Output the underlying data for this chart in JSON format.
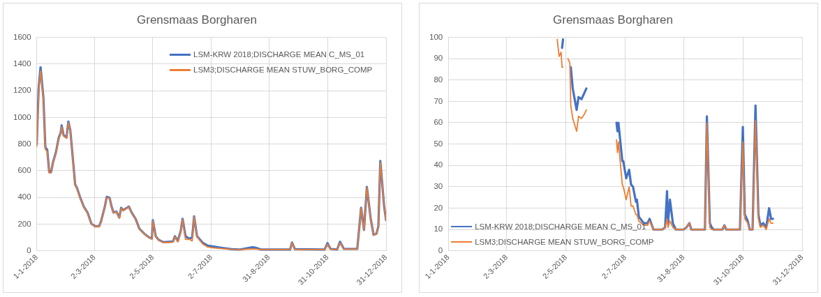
{
  "chart_data": [
    {
      "type": "line",
      "title": "Grensmaas Borgharen",
      "x": [
        "2018-01-01",
        "2018-01-03",
        "2018-01-05",
        "2018-01-08",
        "2018-01-10",
        "2018-01-12",
        "2018-01-14",
        "2018-01-16",
        "2018-01-18",
        "2018-01-21",
        "2018-01-24",
        "2018-01-26",
        "2018-01-27",
        "2018-01-29",
        "2018-02-01",
        "2018-02-03",
        "2018-02-05",
        "2018-02-08",
        "2018-02-10",
        "2018-02-12",
        "2018-02-15",
        "2018-02-19",
        "2018-02-23",
        "2018-02-27",
        "2018-03-03",
        "2018-03-07",
        "2018-03-09",
        "2018-03-13",
        "2018-03-15",
        "2018-03-18",
        "2018-03-20",
        "2018-03-22",
        "2018-03-25",
        "2018-03-28",
        "2018-03-30",
        "2018-04-01",
        "2018-04-07",
        "2018-04-10",
        "2018-04-14",
        "2018-04-18",
        "2018-04-23",
        "2018-04-28",
        "2018-05-01",
        "2018-05-02",
        "2018-05-05",
        "2018-05-08",
        "2018-05-13",
        "2018-05-23",
        "2018-05-25",
        "2018-05-28",
        "2018-05-31",
        "2018-06-02",
        "2018-06-05",
        "2018-06-09",
        "2018-06-12",
        "2018-06-14",
        "2018-06-17",
        "2018-06-23",
        "2018-06-28",
        "2018-07-03",
        "2018-07-13",
        "2018-07-23",
        "2018-07-31",
        "2018-08-14",
        "2018-08-17",
        "2018-08-23",
        "2018-09-22",
        "2018-09-24",
        "2018-09-27",
        "2018-10-28",
        "2018-10-31",
        "2018-11-03",
        "2018-11-10",
        "2018-11-13",
        "2018-11-17",
        "2018-12-01",
        "2018-12-05",
        "2018-12-08",
        "2018-12-11",
        "2018-12-15",
        "2018-12-18",
        "2018-12-21",
        "2018-12-23",
        "2018-12-25",
        "2018-12-29",
        "2018-12-31"
      ],
      "series": [
        {
          "name": "LSM-KRW 2018;DISCHARGE MEAN C_MS_01",
          "color": "#4472c4",
          "values": [
            800,
            1215,
            1375,
            1143,
            774,
            756,
            590,
            590,
            664,
            737,
            848,
            885,
            940,
            866,
            848,
            968,
            903,
            664,
            498,
            470,
            405,
            332,
            286,
            203,
            184,
            184,
            221,
            332,
            405,
            396,
            332,
            286,
            295,
            249,
            323,
            304,
            332,
            286,
            240,
            166,
            129,
            101,
            92,
            230,
            110,
            83,
            65,
            70,
            110,
            74,
            147,
            240,
            110,
            92,
            100,
            258,
            110,
            60,
            40,
            34,
            23,
            13,
            10,
            28,
            24,
            10,
            10,
            63,
            13,
            10,
            58,
            15,
            10,
            68,
            15,
            15,
            323,
            157,
            479,
            240,
            120,
            129,
            184,
            673,
            332,
            230
          ]
        },
        {
          "name": "LSM3;DISCHARGE MEAN STUW_BORG_COMP",
          "color": "#ed7d31",
          "values": [
            780,
            1190,
            1350,
            1130,
            760,
            745,
            585,
            585,
            660,
            730,
            840,
            880,
            930,
            860,
            845,
            960,
            900,
            660,
            495,
            468,
            400,
            330,
            284,
            200,
            182,
            182,
            218,
            330,
            400,
            392,
            330,
            284,
            292,
            246,
            320,
            302,
            330,
            284,
            238,
            164,
            127,
            99,
            90,
            225,
            108,
            82,
            62,
            66,
            108,
            68,
            140,
            235,
            86,
            88,
            74,
            255,
            105,
            52,
            30,
            24,
            17,
            12,
            10,
            15,
            14,
            10,
            10,
            60,
            11,
            10,
            51,
            13,
            10,
            61,
            13,
            13,
            320,
            155,
            475,
            238,
            118,
            127,
            182,
            665,
            330,
            228
          ]
        }
      ],
      "xlim": [
        "2018-01-01",
        "2018-12-31"
      ],
      "xticks": [
        {
          "value": "2018-01-01",
          "label": "1-1-2018"
        },
        {
          "value": "2018-03-02",
          "label": "2-3-2018"
        },
        {
          "value": "2018-05-02",
          "label": "2-5-2018"
        },
        {
          "value": "2018-07-02",
          "label": "2-7-2018"
        },
        {
          "value": "2018-08-31",
          "label": "31-8-2018"
        },
        {
          "value": "2018-10-31",
          "label": "31-10-2018"
        },
        {
          "value": "2018-12-31",
          "label": "31-12-2018"
        }
      ],
      "ylim": [
        0,
        1600
      ],
      "yticks": [
        0,
        200,
        400,
        600,
        800,
        1000,
        1200,
        1400,
        1600
      ],
      "grid": true,
      "legend": "top right",
      "marker": "none",
      "line_style": "solid"
    },
    {
      "type": "line",
      "title": "Grensmaas Borgharen",
      "x": [
        "2018-04-23",
        "2018-04-25",
        "2018-04-27",
        "2018-04-28",
        "2018-04-29",
        "2018-04-30",
        "2018-05-04",
        "2018-05-06",
        "2018-05-07",
        "2018-05-09",
        "2018-05-13",
        "2018-05-15",
        "2018-05-18",
        "2018-05-21",
        "2018-05-23",
        "2018-05-24",
        "2018-06-23",
        "2018-06-24",
        "2018-06-25",
        "2018-06-29",
        "2018-06-30",
        "2018-07-03",
        "2018-07-06",
        "2018-07-08",
        "2018-07-10",
        "2018-07-13",
        "2018-07-14",
        "2018-07-16",
        "2018-07-21",
        "2018-07-25",
        "2018-07-27",
        "2018-07-31",
        "2018-08-09",
        "2018-08-12",
        "2018-08-14",
        "2018-08-15",
        "2018-08-17",
        "2018-08-20",
        "2018-08-23",
        "2018-08-31",
        "2018-09-03",
        "2018-09-06",
        "2018-09-08",
        "2018-09-22",
        "2018-09-24",
        "2018-09-27",
        "2018-09-29",
        "2018-10-01",
        "2018-10-10",
        "2018-10-12",
        "2018-10-14",
        "2018-10-28",
        "2018-10-31",
        "2018-11-02",
        "2018-11-05",
        "2018-11-07",
        "2018-11-10",
        "2018-11-13",
        "2018-11-16",
        "2018-11-18",
        "2018-11-21",
        "2018-11-24",
        "2018-11-27",
        "2018-11-29",
        "2018-12-01"
      ],
      "series": [
        {
          "name": "LSM-KRW 2018;DISCHARGE MEAN C_MS_01",
          "color": "#4472c4",
          "values": [
            null,
            null,
            null,
            95,
            99,
            null,
            null,
            null,
            86,
            76,
            66,
            72,
            71,
            74,
            76,
            null,
            60,
            56,
            60,
            42,
            42,
            34,
            38,
            31,
            30,
            23,
            24,
            16,
            13,
            13,
            15,
            10,
            10,
            11,
            28,
            13,
            24,
            13,
            10,
            10,
            11,
            13,
            10,
            10,
            63,
            13,
            11,
            10,
            10,
            12,
            10,
            10,
            58,
            17,
            14,
            10,
            10,
            68,
            17,
            12,
            13,
            11,
            20,
            15,
            15
          ]
        },
        {
          "name": "LSM3;DISCHARGE MEAN STUW_BORG_COMP",
          "color": "#ed7d31",
          "values": [
            99,
            91,
            93,
            86,
            86,
            null,
            90,
            88,
            68,
            62,
            56,
            63,
            62,
            64,
            66,
            null,
            52,
            46,
            51,
            31,
            30,
            24,
            30,
            21,
            21,
            17,
            17,
            14,
            12,
            12,
            14,
            10,
            10,
            11,
            15,
            11,
            14,
            11,
            10,
            10,
            11,
            13,
            10,
            10,
            60,
            11,
            10,
            10,
            10,
            12,
            10,
            10,
            51,
            15,
            13,
            10,
            10,
            61,
            15,
            11,
            12,
            10,
            15,
            13,
            13
          ]
        }
      ],
      "xlim": [
        "2018-01-01",
        "2018-12-31"
      ],
      "xticks": [
        {
          "value": "2018-01-01",
          "label": "1-1-2018"
        },
        {
          "value": "2018-03-02",
          "label": "2-3-2018"
        },
        {
          "value": "2018-05-02",
          "label": "2-5-2018"
        },
        {
          "value": "2018-07-02",
          "label": "2-7-2018"
        },
        {
          "value": "2018-08-31",
          "label": "31-8-2018"
        },
        {
          "value": "2018-10-31",
          "label": "31-10-2018"
        },
        {
          "value": "2018-12-31",
          "label": "31-12-2018"
        }
      ],
      "ylim": [
        0,
        100
      ],
      "yticks": [
        0,
        10,
        20,
        30,
        40,
        50,
        60,
        70,
        80,
        90,
        100
      ],
      "grid": true,
      "legend": "bottom left",
      "marker": "none",
      "line_style": "solid"
    }
  ]
}
